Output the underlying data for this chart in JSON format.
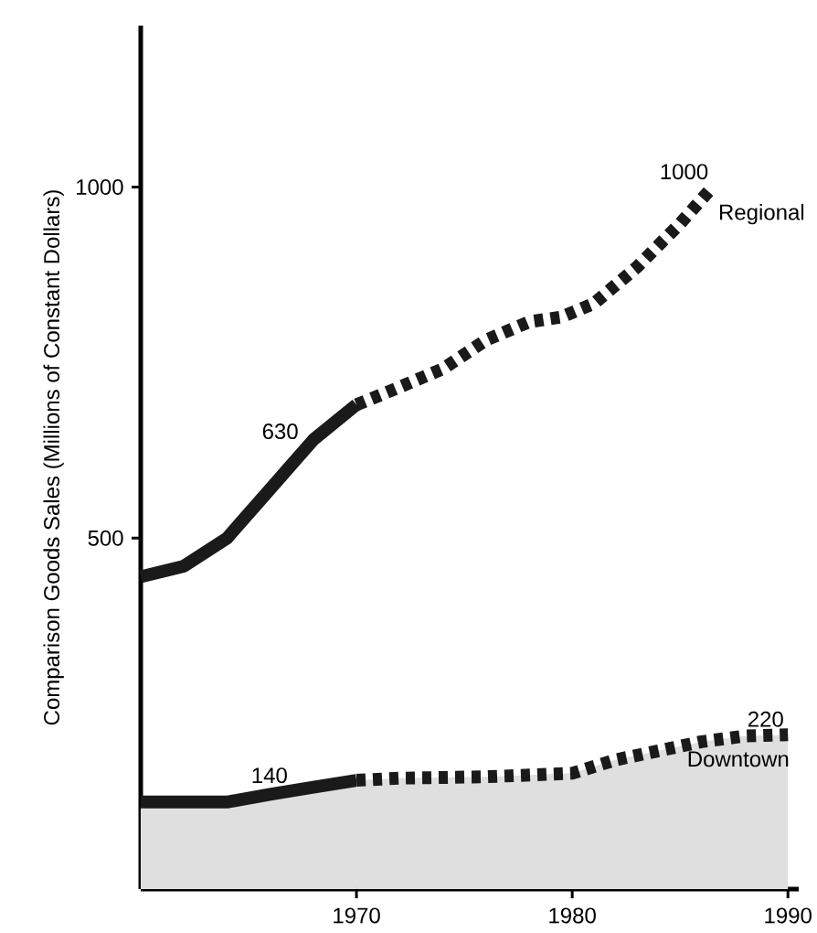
{
  "chart_data": {
    "type": "line",
    "ylabel": "Comparison Goods Sales (Millions of Constant Dollars)",
    "xlim": [
      1960,
      1990.5
    ],
    "xticks": [
      1970,
      1980,
      1990
    ],
    "ylim": [
      0,
      1230
    ],
    "yticks": [
      500,
      1000
    ],
    "series": [
      {
        "color": "#1a1a1a",
        "line_style": "solid",
        "x": [
          1960,
          1962,
          1964,
          1966,
          1968,
          1970
        ],
        "values": [
          445,
          460,
          500,
          570,
          640,
          690
        ]
      },
      {
        "name": "Regional",
        "color": "#1a1a1a",
        "line_style": "dashed",
        "x": [
          1970,
          1972,
          1974,
          1976,
          1978,
          1979.5,
          1981,
          1983,
          1985,
          1986.5
        ],
        "values": [
          690,
          715,
          741,
          782,
          808,
          815,
          834,
          886,
          948,
          1000
        ]
      },
      {
        "type": "area",
        "color": "#1a1a1a",
        "line_style": "solid",
        "x": [
          1960,
          1962,
          1964,
          1966,
          1968,
          1970
        ],
        "values": [
          124,
          124,
          124,
          135,
          145,
          155
        ]
      },
      {
        "type": "area",
        "name": "Downtown",
        "color": "#1a1a1a",
        "line_style": "dashed",
        "x": [
          1970,
          1972,
          1976,
          1980,
          1982,
          1984,
          1986,
          1988,
          1990
        ],
        "values": [
          155,
          158,
          160,
          165,
          184,
          197,
          210,
          218,
          220
        ]
      }
    ],
    "annotations": [
      {
        "text": "630",
        "x": 1967.5,
        "y": 630
      },
      {
        "text": "140",
        "x": 1967,
        "y": 140
      },
      {
        "text": "1000",
        "x": 1986.5,
        "y": 1000
      },
      {
        "text": "220",
        "x": 1990,
        "y": 220
      }
    ]
  }
}
